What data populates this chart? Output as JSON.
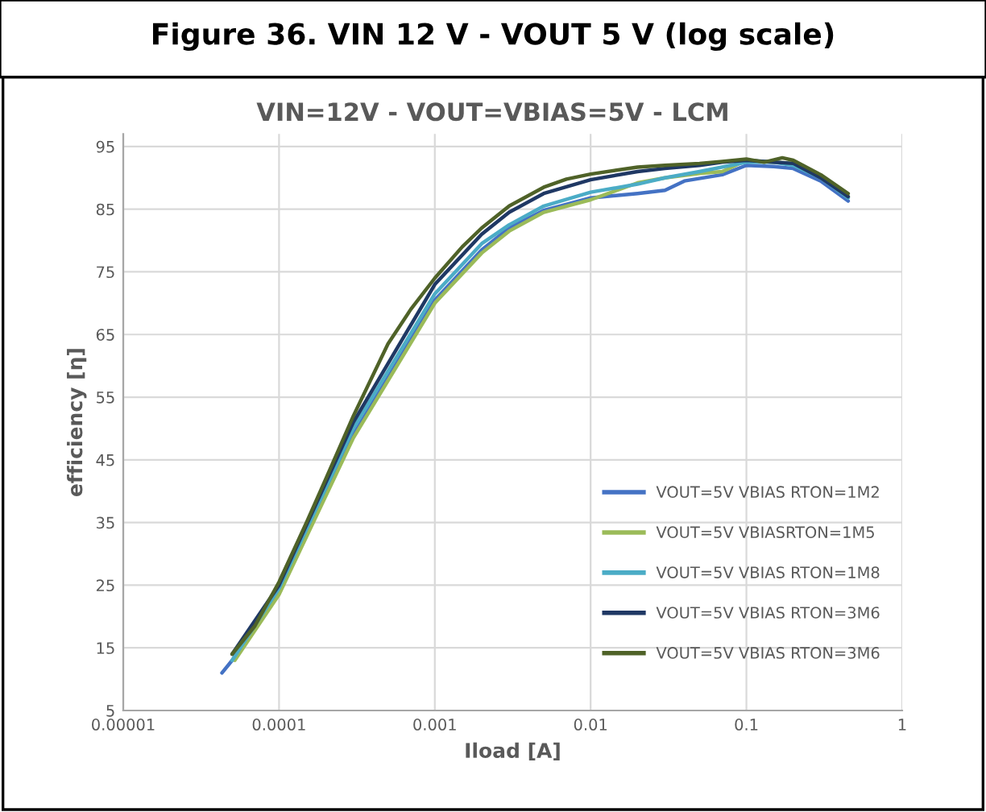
{
  "chart_data": {
    "type": "line",
    "title": "Figure 36. VIN 12 V - VOUT 5 V (log scale)",
    "subtitle": "VIN=12V - VOUT=VBIAS=5V - LCM",
    "xlabel": "Iload [A]",
    "ylabel": "efficiency [η]",
    "log": "x",
    "grid": true,
    "legend": "bottom right",
    "line_style": "solid",
    "marker": "none",
    "xlim": [
      1e-05,
      1
    ],
    "xticks": [
      {
        "value": 1e-05,
        "label": "0.00001"
      },
      {
        "value": 0.0001,
        "label": "0.0001"
      },
      {
        "value": 0.001,
        "label": "0.001"
      },
      {
        "value": 0.01,
        "label": "0.01"
      },
      {
        "value": 0.1,
        "label": "0.1"
      },
      1
    ],
    "ylim": [
      5,
      97
    ],
    "yticks": [
      5,
      15,
      25,
      35,
      45,
      55,
      65,
      75,
      85,
      95
    ],
    "series": [
      {
        "name": "VOUT=5V VBIAS RTON=1M2",
        "color": "#4472c4",
        "x": [
          4.3e-05,
          5e-05,
          0.0001,
          0.0003,
          0.001,
          0.002,
          0.003,
          0.005,
          0.01,
          0.02,
          0.03,
          0.04,
          0.07,
          0.1,
          0.15,
          0.2,
          0.3,
          0.45
        ],
        "values": [
          11,
          13,
          24,
          49,
          70.5,
          78.5,
          82,
          84.8,
          86.8,
          87.5,
          88,
          89.5,
          90.5,
          92,
          91.8,
          91.5,
          89.5,
          86.3
        ]
      },
      {
        "name": "VOUT=5V VBIASRTON=1M5",
        "color": "#9bbb59",
        "x": [
          5.2e-05,
          0.0001,
          0.0003,
          0.001,
          0.002,
          0.003,
          0.005,
          0.01,
          0.02,
          0.03,
          0.05,
          0.07,
          0.1,
          0.15,
          0.2,
          0.3,
          0.45
        ],
        "values": [
          13,
          23.5,
          48.5,
          70,
          78,
          81.5,
          84.5,
          86.5,
          89.2,
          90,
          90.7,
          91,
          92.8,
          92.5,
          92.3,
          90,
          87
        ]
      },
      {
        "name": "VOUT=5V VBIAS RTON=1M8",
        "color": "#4bacc6",
        "x": [
          5e-05,
          0.0001,
          0.0003,
          0.001,
          0.002,
          0.003,
          0.005,
          0.01,
          0.02,
          0.03,
          0.05,
          0.1,
          0.15,
          0.2,
          0.3,
          0.45
        ],
        "values": [
          13,
          24.5,
          50,
          71.5,
          79.5,
          82.5,
          85.5,
          87.7,
          89,
          90,
          91,
          92.5,
          92.5,
          92,
          90,
          86.8
        ]
      },
      {
        "name": "VOUT=5V VBIAS RTON=3M6",
        "color": "#1f3864",
        "x": [
          5e-05,
          0.0001,
          0.0003,
          0.001,
          0.002,
          0.003,
          0.005,
          0.01,
          0.02,
          0.03,
          0.05,
          0.07,
          0.1,
          0.15,
          0.2,
          0.3,
          0.45
        ],
        "values": [
          14,
          25,
          51,
          73,
          81,
          84.5,
          87.5,
          89.7,
          91,
          91.5,
          92,
          92.5,
          92.8,
          92.5,
          92.3,
          90,
          87
        ]
      },
      {
        "name": "VOUT=5V VBIAS RTON=3M6",
        "color": "#4f6228",
        "x": [
          5e-05,
          7e-05,
          0.0001,
          0.00015,
          0.0002,
          0.0003,
          0.0005,
          0.0007,
          0.001,
          0.0015,
          0.002,
          0.003,
          0.005,
          0.007,
          0.01,
          0.02,
          0.03,
          0.05,
          0.07,
          0.1,
          0.13,
          0.17,
          0.2,
          0.3,
          0.45
        ],
        "values": [
          14,
          18.5,
          25.5,
          35,
          42,
          52,
          63.5,
          69,
          74,
          79,
          82,
          85.5,
          88.5,
          89.8,
          90.6,
          91.7,
          92,
          92.3,
          92.6,
          93,
          92.5,
          93.2,
          92.8,
          90.5,
          87.5
        ]
      }
    ]
  }
}
